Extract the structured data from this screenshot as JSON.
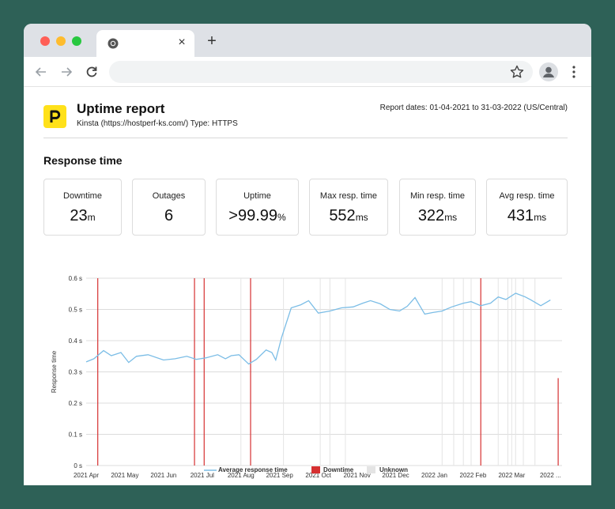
{
  "browser": {
    "tab_close_glyph": "×",
    "new_tab_glyph": "+",
    "address_value": "",
    "icons": [
      "chrome-icon",
      "back-arrow-icon",
      "forward-arrow-icon",
      "reload-icon",
      "star-icon",
      "profile-icon",
      "kebab-menu-icon"
    ]
  },
  "report": {
    "title": "Uptime report",
    "subtitle": "Kinsta (https://hostperf-ks.com/) Type: HTTPS",
    "dates": "Report dates: 01-04-2021 to 31-03-2022 (US/Central)",
    "logo_letter": "P",
    "logo_color": "#ffe11a"
  },
  "section_title": "Response time",
  "cards": [
    {
      "label": "Downtime",
      "value": "23",
      "unit": "m"
    },
    {
      "label": "Outages",
      "value": "6",
      "unit": ""
    },
    {
      "label": "Uptime",
      "value": ">99.99",
      "unit": "%"
    },
    {
      "label": "Max resp. time",
      "value": "552",
      "unit": "ms"
    },
    {
      "label": "Min resp. time",
      "value": "322",
      "unit": "ms"
    },
    {
      "label": "Avg resp. time",
      "value": "431",
      "unit": "ms"
    }
  ],
  "chart_data": {
    "type": "line",
    "ylabel": "Response time",
    "ylim": [
      0,
      0.6
    ],
    "yticks": [
      "0 s",
      "0.1 s",
      "0.2 s",
      "0.3 s",
      "0.4 s",
      "0.5 s",
      "0.6 s"
    ],
    "xticks": [
      "2021 Apr",
      "2021 May",
      "2021 Jun",
      "2021 Jul",
      "2021 Aug",
      "2021 Sep",
      "2021 Oct",
      "2021 Nov",
      "2021 Dec",
      "2022 Jan",
      "2022 Feb",
      "2022 Mar",
      "2022 ..."
    ],
    "xlim": [
      0,
      12.3
    ],
    "grid": true,
    "legend_position": "bottom",
    "series": [
      {
        "name": "Average response time",
        "color": "#7bbde6",
        "x": [
          0,
          0.2,
          0.45,
          0.65,
          0.9,
          1.1,
          1.3,
          1.6,
          2.0,
          2.3,
          2.6,
          2.85,
          3.1,
          3.4,
          3.6,
          3.75,
          3.95,
          4.2,
          4.4,
          4.65,
          4.8,
          4.9,
          5.05,
          5.3,
          5.55,
          5.75,
          6.0,
          6.3,
          6.6,
          6.9,
          7.15,
          7.35,
          7.6,
          7.85,
          8.1,
          8.3,
          8.5,
          8.75,
          8.95,
          9.2,
          9.45,
          9.75,
          9.95,
          10.2,
          10.45,
          10.65,
          10.85,
          11.1,
          11.35,
          11.5,
          11.75,
          12.0
        ],
        "y": [
          0.332,
          0.342,
          0.368,
          0.352,
          0.362,
          0.33,
          0.35,
          0.355,
          0.338,
          0.342,
          0.35,
          0.34,
          0.345,
          0.355,
          0.342,
          0.352,
          0.355,
          0.325,
          0.34,
          0.37,
          0.362,
          0.338,
          0.41,
          0.505,
          0.515,
          0.528,
          0.488,
          0.495,
          0.505,
          0.508,
          0.52,
          0.528,
          0.518,
          0.5,
          0.495,
          0.51,
          0.538,
          0.485,
          0.49,
          0.495,
          0.508,
          0.52,
          0.525,
          0.512,
          0.52,
          0.54,
          0.532,
          0.552,
          0.54,
          0.53,
          0.512,
          0.53
        ]
      },
      {
        "name": "Downtime",
        "color": "#d63031",
        "type": "bars",
        "x": [
          0.3,
          2.8,
          3.05,
          4.25,
          10.2,
          12.2
        ],
        "y": [
          0.6,
          0.6,
          0.6,
          0.6,
          0.6,
          0.28
        ]
      },
      {
        "name": "Unknown",
        "color": "#e4e4e4",
        "type": "bars",
        "x": [
          4.0,
          5.1,
          6.05,
          6.3,
          6.7,
          9.2,
          9.5,
          9.75,
          9.95,
          10.65,
          10.9,
          11.0,
          11.1,
          11.3,
          11.6
        ]
      }
    ]
  }
}
